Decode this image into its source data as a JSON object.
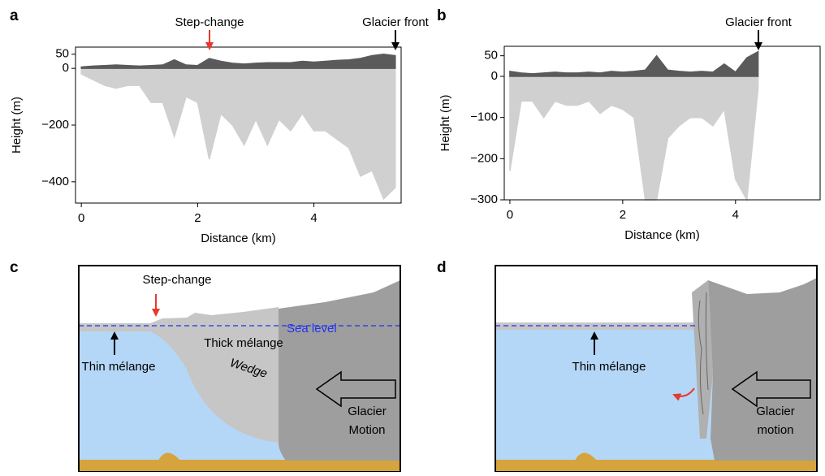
{
  "chart_data": [
    {
      "type": "area",
      "panel": "a",
      "xlabel": "Distance (km)",
      "ylabel": "Height (m)",
      "annotations": [
        "Step-change",
        "Glacier front"
      ],
      "xlim": [
        -0.1,
        5.5
      ],
      "ylim": [
        -475,
        75
      ],
      "xticks": [
        0,
        2,
        4
      ],
      "yticks": [
        50,
        0,
        {
          "value": -200,
          "label": "−200"
        },
        {
          "value": -400,
          "label": "−400"
        }
      ],
      "x": [
        0,
        0.2,
        0.4,
        0.6,
        0.8,
        1.0,
        1.2,
        1.4,
        1.6,
        1.8,
        2.0,
        2.2,
        2.4,
        2.6,
        2.8,
        3.0,
        3.2,
        3.4,
        3.6,
        3.8,
        4.0,
        4.2,
        4.4,
        4.6,
        4.8,
        5.0,
        5.2,
        5.4
      ],
      "series": [
        {
          "color": "#d0d0d0",
          "values": [
            -20,
            -40,
            -60,
            -70,
            -60,
            -60,
            -120,
            -120,
            -240,
            -100,
            -120,
            -320,
            -160,
            -200,
            -270,
            -180,
            -270,
            -180,
            -220,
            -160,
            -220,
            -220,
            -250,
            -280,
            -380,
            -360,
            -460,
            -420
          ]
        },
        {
          "color": "#5a5a5a",
          "values": [
            5,
            8,
            10,
            12,
            10,
            8,
            10,
            12,
            30,
            12,
            10,
            35,
            25,
            18,
            15,
            18,
            20,
            20,
            20,
            25,
            22,
            25,
            28,
            30,
            35,
            45,
            50,
            45
          ]
        }
      ]
    },
    {
      "type": "area",
      "panel": "b",
      "xlabel": "Distance (km)",
      "ylabel": "Height (m)",
      "annotations": [
        "Glacier front"
      ],
      "xlim": [
        -0.1,
        5.5
      ],
      "ylim": [
        -300,
        73
      ],
      "xticks": [
        0,
        2,
        4
      ],
      "yticks": [
        50,
        0,
        {
          "value": -100,
          "label": "−100"
        },
        {
          "value": -200,
          "label": "−200"
        },
        {
          "value": -300,
          "label": "−300"
        }
      ],
      "x": [
        0,
        0.2,
        0.4,
        0.6,
        0.8,
        1.0,
        1.2,
        1.4,
        1.6,
        1.8,
        2.0,
        2.2,
        2.4,
        2.6,
        2.8,
        3.0,
        3.2,
        3.4,
        3.6,
        3.8,
        4.0,
        4.2,
        4.4
      ],
      "series": [
        {
          "color": "#d0d0d0",
          "values": [
            -230,
            -60,
            -60,
            -100,
            -60,
            -70,
            -70,
            -60,
            -90,
            -70,
            -80,
            -100,
            -300,
            -300,
            -150,
            -120,
            -100,
            -100,
            -120,
            -80,
            -250,
            -300,
            -30
          ]
        },
        {
          "color": "#5a5a5a",
          "values": [
            12,
            8,
            6,
            8,
            10,
            8,
            8,
            10,
            8,
            12,
            10,
            12,
            15,
            50,
            15,
            12,
            10,
            12,
            10,
            30,
            10,
            45,
            60
          ]
        }
      ]
    }
  ],
  "diagrams": [
    {
      "panel": "c",
      "labels": [
        "Step-change",
        "Sea level",
        "Thin mélange",
        "Thick mélange",
        "Wedge",
        "Glacier",
        "Motion"
      ]
    },
    {
      "panel": "d",
      "labels": [
        "Thin mélange",
        "Glacier",
        "motion"
      ]
    }
  ]
}
